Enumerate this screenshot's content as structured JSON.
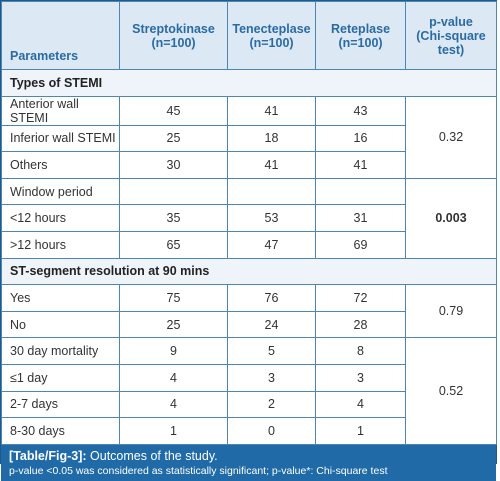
{
  "headers": {
    "parameters": "Parameters",
    "col1_name": "Streptokinase",
    "col1_n": "(n=100)",
    "col2_name": "Tenecteplase",
    "col2_n": "(n=100)",
    "col3_name": "Reteplase",
    "col3_n": "(n=100)",
    "pvalue_l1": "p-value",
    "pvalue_l2": "(Chi-square",
    "pvalue_l3": "test)"
  },
  "sections": {
    "types": "Types of STEMI",
    "st": "ST-segment resolution at 90 mins"
  },
  "rows": [
    {
      "label": "Anterior wall STEMI",
      "v1": "45",
      "v2": "41",
      "v3": "43"
    },
    {
      "label": "Inferior wall STEMI",
      "v1": "25",
      "v2": "18",
      "v3": "16"
    },
    {
      "label": "Others",
      "v1": "30",
      "v2": "41",
      "v3": "41"
    },
    {
      "label": "Window period",
      "v1": "",
      "v2": "",
      "v3": ""
    },
    {
      "label": "<12 hours",
      "v1": "35",
      "v2": "53",
      "v3": "31"
    },
    {
      "label": ">12 hours",
      "v1": "65",
      "v2": "47",
      "v3": "69"
    },
    {
      "label": "Yes",
      "v1": "75",
      "v2": "76",
      "v3": "72"
    },
    {
      "label": "No",
      "v1": "25",
      "v2": "24",
      "v3": "28"
    },
    {
      "label": "30 day mortality",
      "v1": "9",
      "v2": "5",
      "v3": "8"
    },
    {
      "label": "≤1 day",
      "v1": "4",
      "v2": "3",
      "v3": "3"
    },
    {
      "label": "2-7 days",
      "v1": "4",
      "v2": "2",
      "v3": "4"
    },
    {
      "label": "8-30 days",
      "v1": "1",
      "v2": "0",
      "v3": "1"
    }
  ],
  "pvalues": {
    "types": "0.32",
    "window": "0.003",
    "st": "0.79",
    "mortality": "0.52"
  },
  "caption": {
    "tag": "[Table/Fig-3]:",
    "title": " Outcomes of the study.",
    "note": "p-value <0.05 was considered as statistically significant; p-value*: Chi-square test"
  },
  "colors": {
    "header_bg": "#dce9f4",
    "header_text": "#2a6aa5",
    "border": "#4d85b3",
    "caption_bg": "#1f6aa7"
  }
}
